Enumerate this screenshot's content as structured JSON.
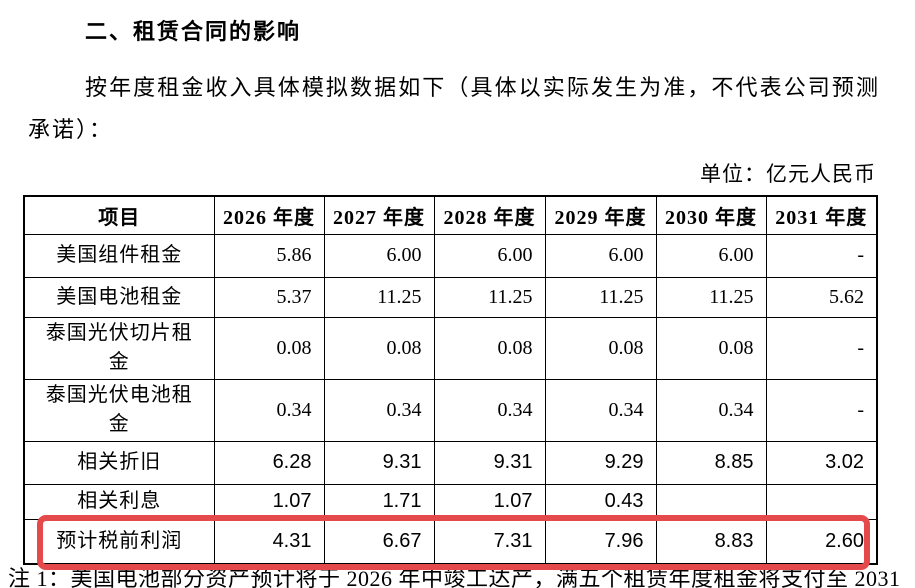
{
  "page": {
    "section_title": "二、租赁合同的影响",
    "paragraph": "按年度租金收入具体模拟数据如下（具体以实际发生为准，不代表公司预测承诺）：",
    "unit_label": "单位：亿元人民币",
    "footnote": "注 1：美国电池部分资产预计将于 2026 年中竣工达产，满五个租赁年度租金将支付至 2031"
  },
  "table": {
    "headers": [
      "项目",
      "2026 年度",
      "2027 年度",
      "2028 年度",
      "2029 年度",
      "2030 年度",
      "2031 年度"
    ],
    "rows": [
      {
        "label": "美国组件租金",
        "values": [
          "5.86",
          "6.00",
          "6.00",
          "6.00",
          "6.00",
          "-"
        ],
        "num_style": "serif",
        "highlighted": false
      },
      {
        "label": "美国电池租金",
        "values": [
          "5.37",
          "11.25",
          "11.25",
          "11.25",
          "11.25",
          "5.62"
        ],
        "num_style": "serif",
        "highlighted": false
      },
      {
        "label": "泰国光伏切片租金",
        "values": [
          "0.08",
          "0.08",
          "0.08",
          "0.08",
          "0.08",
          "-"
        ],
        "num_style": "serif",
        "highlighted": false
      },
      {
        "label": "泰国光伏电池租金",
        "values": [
          "0.34",
          "0.34",
          "0.34",
          "0.34",
          "0.34",
          "-"
        ],
        "num_style": "serif",
        "highlighted": false
      },
      {
        "label": "相关折旧",
        "values": [
          "6.28",
          "9.31",
          "9.31",
          "9.29",
          "8.85",
          "3.02"
        ],
        "num_style": "sans",
        "highlighted": false
      },
      {
        "label": "相关利息",
        "values": [
          "1.07",
          "1.71",
          "1.07",
          "0.43",
          "",
          ""
        ],
        "num_style": "sans",
        "highlighted": false
      },
      {
        "label": "预计税前利润",
        "values": [
          "4.31",
          "6.67",
          "7.31",
          "7.96",
          "8.83",
          "2.60"
        ],
        "num_style": "sans",
        "highlighted": true
      }
    ]
  },
  "highlight": {
    "color": "#e4494b"
  }
}
